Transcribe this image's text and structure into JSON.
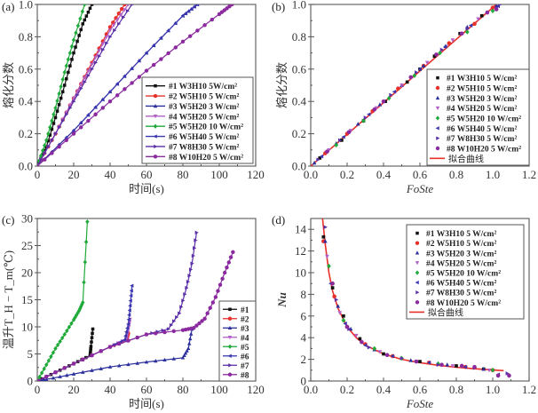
{
  "chart_data": [
    {
      "panel": "(a)",
      "type": "line",
      "title": "",
      "xlabel": "时间(s)",
      "ylabel": "熔化分数",
      "xlim": [
        0,
        120
      ],
      "ylim": [
        0,
        1.0
      ],
      "xticks": [
        0,
        20,
        40,
        60,
        80,
        100,
        120
      ],
      "yticks": [
        0.0,
        0.2,
        0.4,
        0.6,
        0.8,
        1.0
      ],
      "ytick_labels": [
        "0.0",
        "0.2",
        "0.4",
        "0.6",
        "0.8",
        "1.0"
      ],
      "legend_position": "bottom-right",
      "series": [
        {
          "name": "#1 W3H10 5W/cm²",
          "color": "#111111",
          "marker": "square",
          "x": [
            0,
            5,
            10,
            15,
            20,
            25,
            30
          ],
          "y": [
            0,
            0.12,
            0.3,
            0.5,
            0.7,
            0.88,
            1.0
          ]
        },
        {
          "name": "#2 W5H10 5  W/cm²",
          "color": "#e8302a",
          "marker": "circle",
          "x": [
            0,
            10,
            20,
            30,
            40,
            48
          ],
          "y": [
            0,
            0.2,
            0.42,
            0.64,
            0.86,
            1.0
          ]
        },
        {
          "name": "#3 W5H20 3 W/cm²",
          "color": "#2b2f9c",
          "marker": "triangle-up",
          "x": [
            0,
            20,
            40,
            60,
            80,
            88
          ],
          "y": [
            0,
            0.22,
            0.46,
            0.7,
            0.93,
            1.0
          ]
        },
        {
          "name": "#4 W5H20 5 W/cm²",
          "color": "#b25fc7",
          "marker": "triangle-down",
          "x": [
            0,
            10,
            20,
            30,
            40,
            50
          ],
          "y": [
            0,
            0.2,
            0.42,
            0.63,
            0.84,
            1.0
          ]
        },
        {
          "name": "#5 W5H20 10 W/cm²",
          "color": "#1faa3a",
          "marker": "diamond",
          "x": [
            0,
            5,
            10,
            15,
            20,
            26
          ],
          "y": [
            0,
            0.16,
            0.36,
            0.58,
            0.78,
            1.0
          ]
        },
        {
          "name": "#6 W5H40 5 W/cm²",
          "color": "#3a35b0",
          "marker": "triangle-left",
          "x": [
            0,
            20,
            40,
            60,
            80,
            88
          ],
          "y": [
            0,
            0.22,
            0.46,
            0.7,
            0.93,
            1.0
          ]
        },
        {
          "name": "#7 W8H30 5 W/cm²",
          "color": "#5a2fa8",
          "marker": "triangle-right",
          "x": [
            0,
            10,
            20,
            30,
            40,
            52
          ],
          "y": [
            0,
            0.2,
            0.4,
            0.6,
            0.8,
            1.0
          ]
        },
        {
          "name": "#8 W10H20 5 W/cm²",
          "color": "#8a2a9e",
          "marker": "circle",
          "x": [
            0,
            20,
            40,
            60,
            80,
            100,
            107
          ],
          "y": [
            0,
            0.2,
            0.4,
            0.59,
            0.77,
            0.94,
            1.0
          ]
        }
      ]
    },
    {
      "panel": "(b)",
      "type": "scatter",
      "title": "",
      "xlabel": "FoSte",
      "ylabel": "熔化分数",
      "xlim": [
        0,
        1.2
      ],
      "ylim": [
        0,
        1.0
      ],
      "xticks": [
        0.0,
        0.2,
        0.4,
        0.6,
        0.8,
        1.0,
        1.2
      ],
      "xtick_labels": [
        "0.0",
        "0.2",
        "0.4",
        "0.6",
        "0.8",
        "1.0",
        "1.2"
      ],
      "yticks": [
        0.0,
        0.2,
        0.4,
        0.6,
        0.8,
        1.0
      ],
      "ytick_labels": [
        "0.0",
        "0.2",
        "0.4",
        "0.6",
        "0.8",
        "1.0"
      ],
      "legend_position": "bottom-right",
      "series": [
        {
          "name": "#1 W3H10 5 W/cm²",
          "color": "#111111",
          "marker": "square",
          "x": [
            0.05,
            0.17,
            0.29,
            0.41,
            0.53,
            0.6,
            0.68,
            0.82,
            0.94
          ],
          "y": [
            0.05,
            0.16,
            0.28,
            0.4,
            0.52,
            0.6,
            0.68,
            0.82,
            0.93
          ]
        },
        {
          "name": "#2 W5H10 5 W/cm²",
          "color": "#e8302a",
          "marker": "circle",
          "x": [
            0.08,
            0.2,
            0.34,
            0.48,
            0.62,
            0.76,
            0.9,
            1.0
          ],
          "y": [
            0.08,
            0.2,
            0.34,
            0.48,
            0.62,
            0.76,
            0.88,
            0.98
          ]
        },
        {
          "name": "#3 W5H20 3 W/cm²",
          "color": "#2b2f9c",
          "marker": "triangle-up",
          "x": [
            0.02,
            0.14,
            0.26,
            0.38,
            0.5,
            0.62,
            0.74,
            0.86,
            1.02
          ],
          "y": [
            0.02,
            0.14,
            0.26,
            0.38,
            0.5,
            0.62,
            0.74,
            0.86,
            0.99
          ]
        },
        {
          "name": "#4 W5H20 5 W/cm²",
          "color": "#b25fc7",
          "marker": "triangle-down",
          "x": [
            0.1,
            0.22,
            0.36,
            0.5,
            0.64,
            0.78,
            0.92
          ],
          "y": [
            0.1,
            0.22,
            0.36,
            0.5,
            0.64,
            0.78,
            0.91
          ]
        },
        {
          "name": "#5 W5H20 10 W/cm²",
          "color": "#1faa3a",
          "marker": "diamond",
          "x": [
            0.14,
            0.29,
            0.43,
            0.57,
            0.71,
            0.86,
            1.0
          ],
          "y": [
            0.13,
            0.28,
            0.42,
            0.56,
            0.7,
            0.83,
            0.96
          ]
        },
        {
          "name": "#6 W5H40 5 W/cm²",
          "color": "#3a35b0",
          "marker": "triangle-left",
          "x": [
            0.06,
            0.18,
            0.32,
            0.46,
            0.6,
            0.74,
            0.88,
            1.03
          ],
          "y": [
            0.06,
            0.18,
            0.32,
            0.46,
            0.6,
            0.74,
            0.87,
            0.99
          ]
        },
        {
          "name": "#7 W8H30 5 W/cm²",
          "color": "#5a2fa8",
          "marker": "triangle-right",
          "x": [
            0.04,
            0.16,
            0.3,
            0.44,
            0.58,
            0.72,
            0.86,
            1.04
          ],
          "y": [
            0.04,
            0.16,
            0.3,
            0.44,
            0.58,
            0.72,
            0.85,
            1.0
          ]
        },
        {
          "name": "#8 W10H20 5 W/cm²",
          "color": "#8a2a9e",
          "marker": "circle",
          "x": [
            0.09,
            0.21,
            0.35,
            0.4,
            0.55,
            0.69,
            0.83,
            0.97,
            1.02
          ],
          "y": [
            0.09,
            0.21,
            0.35,
            0.4,
            0.55,
            0.69,
            0.82,
            0.95,
            0.97
          ]
        }
      ],
      "fit_curve": {
        "name": "拟合曲线",
        "color": "#e8302a",
        "x": [
          0,
          1.02
        ],
        "y": [
          0,
          1.0
        ]
      }
    },
    {
      "panel": "(c)",
      "type": "line",
      "title": "",
      "xlabel": "时间(s)",
      "ylabel": "温升T_H − T_m(℃)",
      "xlim": [
        0,
        120
      ],
      "ylim": [
        0,
        30
      ],
      "xticks": [
        0,
        20,
        40,
        60,
        80,
        100,
        120
      ],
      "yticks": [
        0,
        5,
        10,
        15,
        20,
        25,
        30
      ],
      "legend_position": "right",
      "series": [
        {
          "name": "#1",
          "color": "#111111",
          "marker": "square",
          "x": [
            0,
            10,
            20,
            29,
            29.5,
            30.5
          ],
          "y": [
            0,
            1.6,
            3.2,
            4.7,
            6.4,
            9.6
          ]
        },
        {
          "name": "#2",
          "color": "#e8302a",
          "marker": "circle",
          "x": [
            0,
            20,
            40,
            49,
            50
          ],
          "y": [
            0,
            3.2,
            6.3,
            7.6,
            8.8
          ]
        },
        {
          "name": "#3",
          "color": "#2b2f9c",
          "marker": "triangle-up",
          "x": [
            0,
            5,
            20,
            40,
            60,
            80,
            83,
            85
          ],
          "y": [
            0,
            0.3,
            1.3,
            2.6,
            3.5,
            4.3,
            6.0,
            9.6
          ]
        },
        {
          "name": "#4",
          "color": "#b25fc7",
          "marker": "triangle-down",
          "x": [
            0,
            20,
            40,
            49,
            50,
            51
          ],
          "y": [
            0,
            3.2,
            6.3,
            7.7,
            9.5,
            11.4
          ]
        },
        {
          "name": "#5",
          "color": "#1faa3a",
          "marker": "diamond",
          "x": [
            0,
            5,
            10,
            15,
            20,
            23,
            25,
            27.5
          ],
          "y": [
            0,
            3.0,
            6.0,
            8.6,
            11.3,
            13.0,
            14.5,
            29.4
          ]
        },
        {
          "name": "#6",
          "color": "#3a35b0",
          "marker": "triangle-left",
          "x": [
            0,
            20,
            40,
            48,
            50,
            51,
            52
          ],
          "y": [
            0,
            3.2,
            6.3,
            7.6,
            10.5,
            13.9,
            17.6
          ]
        },
        {
          "name": "#7",
          "color": "#5a2fa8",
          "marker": "triangle-right",
          "x": [
            0,
            20,
            40,
            60,
            72,
            78,
            82,
            85,
            87.5
          ],
          "y": [
            0,
            3.2,
            6.3,
            8.6,
            9.6,
            12.5,
            17.2,
            21.7,
            27.4
          ]
        },
        {
          "name": "#8",
          "color": "#8a2a9e",
          "marker": "circle",
          "x": [
            0,
            20,
            40,
            60,
            80,
            86,
            92,
            98,
            103,
            107.5
          ],
          "y": [
            0,
            3.2,
            6.3,
            8.6,
            9.4,
            9.8,
            11.5,
            15.5,
            20.0,
            23.8
          ]
        }
      ]
    },
    {
      "panel": "(d)",
      "type": "scatter",
      "title": "",
      "xlabel": "FoSte",
      "ylabel": "Nu",
      "xlim": [
        0,
        1.2
      ],
      "ylim": [
        0,
        15
      ],
      "xticks": [
        0.0,
        0.2,
        0.4,
        0.6,
        0.8,
        1.0,
        1.2
      ],
      "xtick_labels": [
        "0.0",
        "0.2",
        "0.4",
        "0.6",
        "0.8",
        "1.0",
        "1.2"
      ],
      "yticks": [
        0,
        2,
        4,
        6,
        8,
        10,
        12,
        14
      ],
      "legend_position": "top-right",
      "series": [
        {
          "name": "#1 W3H10 5 W/cm²",
          "color": "#111111",
          "marker": "square",
          "x": [
            0.07,
            0.12,
            0.18,
            0.27,
            0.4,
            0.6,
            0.8,
            0.95
          ],
          "y": [
            13.3,
            8.6,
            6.0,
            3.9,
            2.5,
            1.8,
            1.4,
            1.1
          ]
        },
        {
          "name": "#2 W5H10 5 W/cm²",
          "color": "#e8302a",
          "marker": "circle",
          "x": [
            0.07,
            0.13,
            0.2,
            0.3,
            0.45,
            0.65,
            0.85,
            1.0
          ],
          "y": [
            12.9,
            7.8,
            5.0,
            3.4,
            2.3,
            1.7,
            1.3,
            1.0
          ]
        },
        {
          "name": "#3 W5H20 3 W/cm²",
          "color": "#2b2f9c",
          "marker": "triangle-up",
          "x": [
            0.08,
            0.15,
            0.22,
            0.35,
            0.55,
            0.75,
            0.95
          ],
          "y": [
            12.9,
            6.9,
            4.8,
            2.9,
            1.9,
            1.5,
            1.1
          ]
        },
        {
          "name": "#4 W5H20 5 W/cm²",
          "color": "#b25fc7",
          "marker": "triangle-down",
          "x": [
            0.09,
            0.16,
            0.25,
            0.38,
            0.58,
            0.78,
            0.98
          ],
          "y": [
            11.5,
            6.3,
            4.2,
            2.7,
            1.8,
            1.4,
            1.0
          ]
        },
        {
          "name": "#5 W5H20 10 W/cm²",
          "color": "#1faa3a",
          "marker": "diamond",
          "x": [
            0.1,
            0.18,
            0.35,
            0.5,
            0.7,
            1.0
          ],
          "y": [
            10.6,
            5.6,
            3.0,
            2.1,
            1.6,
            1.0
          ]
        },
        {
          "name": "#6 W5H40 5 W/cm²",
          "color": "#3a35b0",
          "marker": "triangle-left",
          "x": [
            0.11,
            0.19,
            0.3,
            0.45,
            0.65,
            0.85,
            1.03
          ],
          "y": [
            9.0,
            5.3,
            3.3,
            2.3,
            1.7,
            1.3,
            0.6
          ]
        },
        {
          "name": "#7 W8H30 5 W/cm²",
          "color": "#5a2fa8",
          "marker": "triangle-right",
          "x": [
            0.08,
            0.14,
            0.21,
            0.32,
            0.5,
            0.7,
            0.9,
            1.08
          ],
          "y": [
            14.2,
            7.5,
            4.8,
            3.1,
            2.1,
            1.5,
            1.2,
            0.7
          ]
        },
        {
          "name": "#8 W10H20 5 W/cm²",
          "color": "#8a2a9e",
          "marker": "circle",
          "x": [
            0.12,
            0.2,
            0.28,
            0.42,
            0.58,
            0.72,
            0.83,
            0.9,
            1.03,
            1.09
          ],
          "y": [
            9.0,
            5.0,
            3.6,
            2.4,
            1.8,
            1.5,
            1.4,
            1.3,
            0.5,
            0.5
          ]
        }
      ],
      "fit_curve": {
        "name": "拟合曲线",
        "color": "#e8302a",
        "x": [
          0.065,
          0.08,
          0.1,
          0.12,
          0.15,
          0.2,
          0.25,
          0.3,
          0.4,
          0.5,
          0.6,
          0.7,
          0.8,
          0.9,
          1.0,
          1.06
        ],
        "y": [
          15.0,
          12.6,
          10.0,
          8.3,
          6.7,
          5.0,
          4.0,
          3.3,
          2.5,
          2.0,
          1.7,
          1.45,
          1.27,
          1.13,
          1.02,
          0.96
        ]
      }
    }
  ]
}
